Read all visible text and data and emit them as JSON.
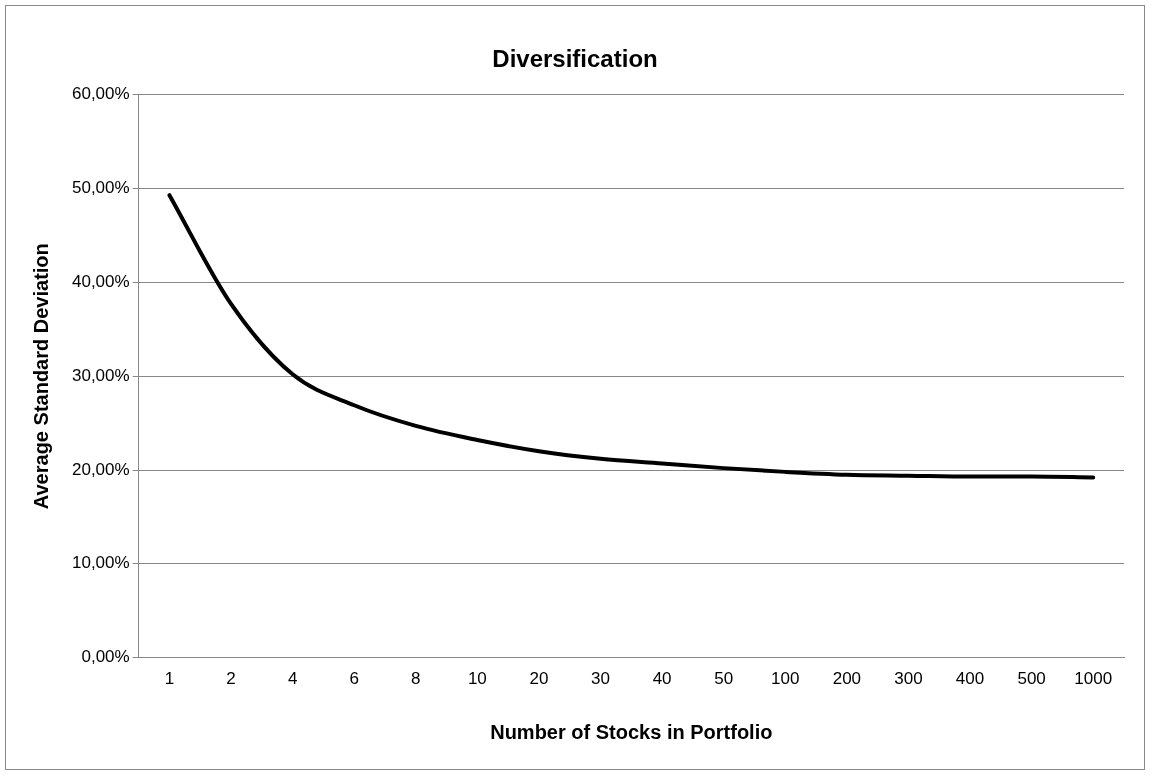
{
  "chart_data": {
    "type": "line",
    "title": "Diversification",
    "xlabel": "Number of Stocks in Portfolio",
    "ylabel": "Average Standard Deviation",
    "categories": [
      "1",
      "2",
      "4",
      "6",
      "8",
      "10",
      "20",
      "30",
      "40",
      "50",
      "100",
      "200",
      "300",
      "400",
      "500",
      "1000"
    ],
    "series": [
      {
        "color": "#000000",
        "values": [
          49.3,
          37.7,
          30.2,
          26.9,
          24.7,
          23.2,
          22.0,
          21.2,
          20.7,
          20.2,
          19.8,
          19.5,
          19.4,
          19.3,
          19.3,
          19.2
        ]
      }
    ],
    "ylim": [
      0,
      60
    ],
    "yticks": [
      {
        "value": 0,
        "label": "0,00%"
      },
      {
        "value": 10,
        "label": "10,00%"
      },
      {
        "value": 20,
        "label": "20,00%"
      },
      {
        "value": 30,
        "label": "30,00%"
      },
      {
        "value": 40,
        "label": "40,00%"
      },
      {
        "value": 50,
        "label": "50,00%"
      },
      {
        "value": 60,
        "label": "60,00%"
      }
    ],
    "grid": "y",
    "legend": false,
    "marker": "none",
    "line_style": "solid"
  }
}
